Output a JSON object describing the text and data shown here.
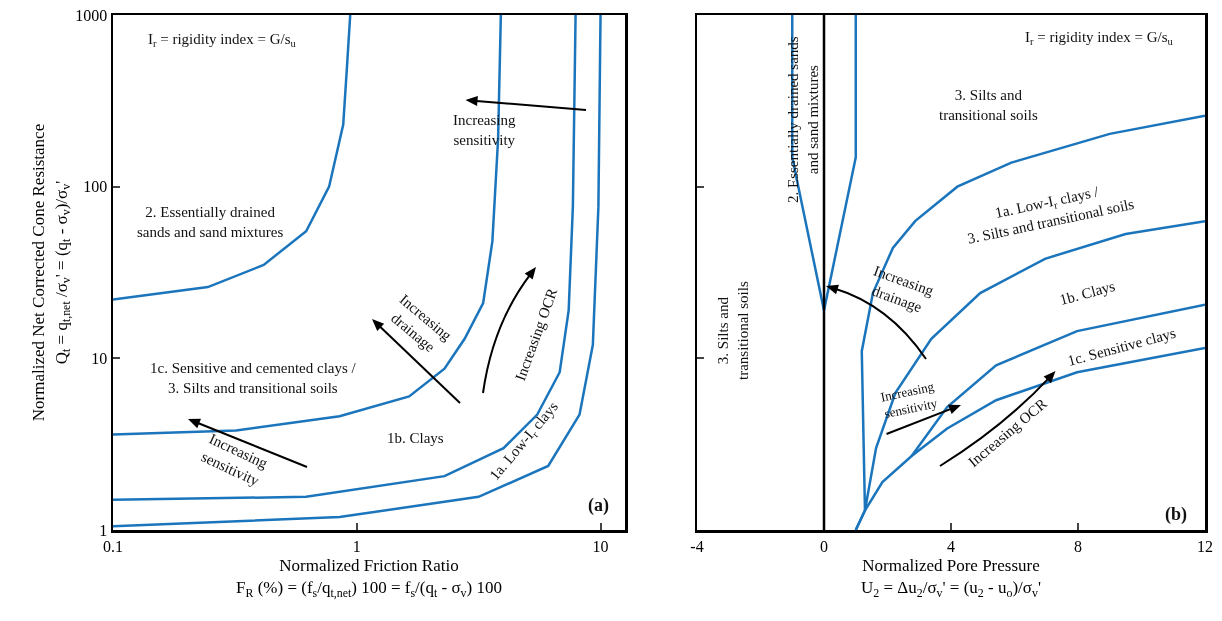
{
  "chart_data": [
    {
      "type": "line",
      "xlabel": "Normalized Friction Ratio\nF$_{R}$ (%) = (f$_{s}$/q$_{t,net}$) 100 = f$_{s}$/(q$_{t}$ - σ$_{v}$) 100",
      "ylabel": "Normalized Net Corrected Cone Resistance\nQ$_{t}$ = q$_{t,net}$ /σ$_{v}$' = (q$_{t}$ - σ$_{v}$)/σ$_{v}$'",
      "log": "xy",
      "xlim": [
        0.1,
        12.6
      ],
      "ylim": [
        1,
        1000
      ],
      "xticks": [
        0.1,
        1,
        10
      ],
      "yticks": [
        1,
        10,
        100,
        1000
      ],
      "grid": false,
      "marker": "none",
      "series": [
        {
          "color": "#1b75bc",
          "x": [
            0.1,
            0.245,
            0.415,
            0.62,
            0.77,
            0.88,
            0.91,
            0.94
          ],
          "values": [
            22,
            26,
            35,
            55,
            100,
            230,
            480,
            1000
          ]
        },
        {
          "color": "#1b75bc",
          "x": [
            0.1,
            0.32,
            0.85,
            1.64,
            2.29,
            2.77,
            3.3,
            3.6,
            3.8,
            3.9
          ],
          "values": [
            3.6,
            3.8,
            4.6,
            6.0,
            8.7,
            13,
            21,
            48,
            190,
            1000
          ]
        },
        {
          "color": "#1b75bc",
          "x": [
            0.1,
            0.62,
            2.29,
            4.0,
            5.5,
            6.8,
            7.4,
            7.7,
            7.9
          ],
          "values": [
            1.5,
            1.56,
            2.06,
            3.0,
            4.7,
            8.3,
            19,
            76,
            1000
          ]
        },
        {
          "color": "#1b75bc",
          "x": [
            0.1,
            0.85,
            3.16,
            6.1,
            8.2,
            9.3,
            9.8,
            10.0
          ],
          "values": [
            1.05,
            1.19,
            1.56,
            2.36,
            4.7,
            12,
            76,
            1000
          ]
        }
      ],
      "annotations": [
        "I$_{r}$ = rigidity index = G/s$_{u}$",
        "2. Essentially drained\nsands and sand mixtures",
        "Increasing\nsensitivity",
        "Increasing\ndrainage",
        "Increasing OCR",
        "1c. Sensitive and cemented clays /\n3. Silts and transitional soils",
        "1b. Clays",
        "Increasing\nsensitivity",
        "1a. Low-I$_{r}$ clays",
        "(a)"
      ]
    },
    {
      "type": "line",
      "xlabel": "Normalized Pore Pressure\nU$_{2}$ = Δu$_{2}$/σ$_{v}$' = (u$_{2}$ - u$_{o}$)/σ$_{v}$'",
      "log": "y",
      "xlim": [
        -4,
        12
      ],
      "ylim": [
        1,
        1000
      ],
      "xticks": [
        -4,
        0,
        4,
        8,
        12
      ],
      "yticks": [
        1,
        10,
        100,
        1000
      ],
      "tick_labels": "x",
      "ref_lines": [
        {
          "axis": "x",
          "value": 0,
          "color": "#000000"
        }
      ],
      "grid": false,
      "marker": "none",
      "series": [
        {
          "color": "#1b75bc",
          "x": [
            -1,
            -1,
            0,
            1,
            1
          ],
          "values": [
            1000,
            148,
            19,
            148,
            1000
          ]
        },
        {
          "color": "#1b75bc",
          "x": [
            1,
            1.29,
            1.19,
            1.54,
            2.17,
            2.87,
            4.2,
            5.9,
            9.0,
            12
          ],
          "values": [
            1,
            1.3,
            11,
            24,
            44,
            63,
            100,
            138,
            203,
            259
          ]
        },
        {
          "color": "#1b75bc",
          "x": [
            1,
            1.29,
            1.64,
            2.25,
            3.38,
            4.92,
            6.96,
            9.5,
            12
          ],
          "values": [
            1,
            1.3,
            3.0,
            6.3,
            13,
            24,
            38,
            53,
            63
          ]
        },
        {
          "color": "#1b75bc",
          "x": [
            2.76,
            3.88,
            5.42,
            7.97,
            12
          ],
          "values": [
            2.7,
            5.2,
            9.1,
            14.4,
            20.5
          ]
        },
        {
          "color": "#1b75bc",
          "x": [
            1.29,
            1.84,
            2.76,
            3.88,
            5.42,
            7.97,
            12
          ],
          "values": [
            1.3,
            1.9,
            2.7,
            3.9,
            5.7,
            8.3,
            11.5
          ]
        }
      ],
      "annotations": [
        "I$_{r}$ = rigidity index = G/s$_{u}$",
        "3. Silts and\ntransitional soils",
        "2. Essentially drained sands\nand sand mixtures",
        "3. Silts and\ntransitional soils",
        "1a. Low-I$_{r}$ clays /\n3. Silts and transitional soils",
        "Increasing\ndrainage",
        "1b. Clays",
        "1c. Sensitive clays",
        "Increasing\nsensitivity",
        "Increasing OCR",
        "(b)"
      ]
    }
  ]
}
